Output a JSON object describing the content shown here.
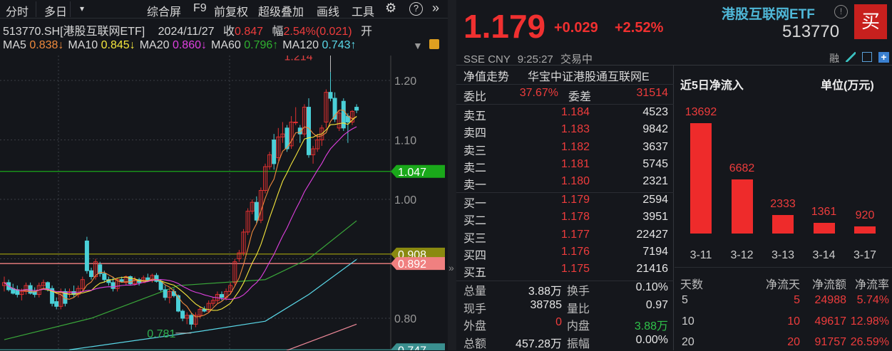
{
  "toolbar": {
    "items": [
      "分时",
      "多日",
      "综合屏",
      "F9",
      "前复权",
      "超级叠加",
      "画线",
      "工具"
    ],
    "dropdown": "▾",
    "gear": "⚙",
    "help": "?",
    "more": "»"
  },
  "info": {
    "code": "513770.SH[港股互联网ETF]",
    "date": "2024/11/27",
    "close_label": "收",
    "close": "0.847",
    "range_label": "幅",
    "range": "2.54%(0.021)",
    "open_label": "开"
  },
  "ma": {
    "items": [
      {
        "label": "MA5",
        "value": "0.838↓",
        "color": "#f08a3c"
      },
      {
        "label": "MA10",
        "value": "0.845↓",
        "color": "#f5e63c"
      },
      {
        "label": "MA20",
        "value": "0.860↓",
        "color": "#e040e0"
      },
      {
        "label": "MA60",
        "value": "0.796↑",
        "color": "#2fb02f"
      },
      {
        "label": "MA120",
        "value": "0.743↑",
        "color": "#5ad8e8"
      }
    ]
  },
  "chart_data": {
    "type": "candlestick",
    "y_ticks": [
      "1.20",
      "1.10",
      "1.00",
      "0.80"
    ],
    "ylim": [
      0.735,
      1.245
    ],
    "high_label": "1.214",
    "low_label": "0.781",
    "levels": [
      {
        "value": "1.047",
        "color": "#1aa81a"
      },
      {
        "value": "0.908",
        "color": "#8a8a10"
      },
      {
        "value": "0.892",
        "color": "#f08080"
      },
      {
        "value": "0.747",
        "color": "#3a8f8f"
      }
    ],
    "candles": [
      [
        0.855,
        0.87,
        0.845,
        0.86
      ],
      [
        0.86,
        0.865,
        0.845,
        0.848
      ],
      [
        0.85,
        0.858,
        0.84,
        0.842
      ],
      [
        0.848,
        0.855,
        0.835,
        0.84
      ],
      [
        0.84,
        0.85,
        0.83,
        0.845
      ],
      [
        0.845,
        0.86,
        0.84,
        0.855
      ],
      [
        0.855,
        0.86,
        0.84,
        0.842
      ],
      [
        0.845,
        0.852,
        0.835,
        0.84
      ],
      [
        0.84,
        0.86,
        0.835,
        0.855
      ],
      [
        0.855,
        0.865,
        0.85,
        0.86
      ],
      [
        0.86,
        0.862,
        0.845,
        0.85
      ],
      [
        0.85,
        0.855,
        0.82,
        0.825
      ],
      [
        0.828,
        0.835,
        0.815,
        0.82
      ],
      [
        0.82,
        0.85,
        0.815,
        0.845
      ],
      [
        0.845,
        0.85,
        0.82,
        0.825
      ],
      [
        0.84,
        0.85,
        0.835,
        0.845
      ],
      [
        0.845,
        0.855,
        0.835,
        0.84
      ],
      [
        0.84,
        0.855,
        0.835,
        0.85
      ],
      [
        0.85,
        0.87,
        0.845,
        0.865
      ],
      [
        0.93,
        0.937,
        0.875,
        0.88
      ],
      [
        0.88,
        0.885,
        0.865,
        0.87
      ],
      [
        0.87,
        0.9,
        0.865,
        0.895
      ],
      [
        0.89,
        0.895,
        0.87,
        0.875
      ],
      [
        0.875,
        0.88,
        0.86,
        0.865
      ],
      [
        0.865,
        0.87,
        0.855,
        0.86
      ],
      [
        0.86,
        0.87,
        0.845,
        0.85
      ],
      [
        0.85,
        0.868,
        0.845,
        0.865
      ],
      [
        0.865,
        0.87,
        0.86,
        0.862
      ],
      [
        0.86,
        0.872,
        0.855,
        0.87
      ],
      [
        0.87,
        0.872,
        0.855,
        0.858
      ],
      [
        0.858,
        0.87,
        0.855,
        0.865
      ],
      [
        0.865,
        0.868,
        0.855,
        0.86
      ],
      [
        0.86,
        0.872,
        0.86,
        0.868
      ],
      [
        0.868,
        0.875,
        0.862,
        0.864
      ],
      [
        0.864,
        0.875,
        0.86,
        0.872
      ],
      [
        0.872,
        0.876,
        0.86,
        0.862
      ],
      [
        0.862,
        0.865,
        0.845,
        0.848
      ],
      [
        0.848,
        0.855,
        0.83,
        0.835
      ],
      [
        0.835,
        0.85,
        0.825,
        0.845
      ],
      [
        0.845,
        0.85,
        0.835,
        0.838
      ],
      [
        0.838,
        0.84,
        0.81,
        0.812
      ],
      [
        0.812,
        0.815,
        0.795,
        0.8
      ],
      [
        0.8,
        0.81,
        0.79,
        0.805
      ],
      [
        0.805,
        0.808,
        0.781,
        0.79
      ],
      [
        0.79,
        0.81,
        0.785,
        0.805
      ],
      [
        0.805,
        0.82,
        0.8,
        0.815
      ],
      [
        0.815,
        0.82,
        0.81,
        0.812
      ],
      [
        0.812,
        0.83,
        0.81,
        0.825
      ],
      [
        0.825,
        0.835,
        0.82,
        0.83
      ],
      [
        0.83,
        0.845,
        0.825,
        0.84
      ],
      [
        0.84,
        0.845,
        0.83,
        0.835
      ],
      [
        0.835,
        0.85,
        0.83,
        0.845
      ],
      [
        0.845,
        0.86,
        0.84,
        0.855
      ],
      [
        0.86,
        0.9,
        0.855,
        0.895
      ],
      [
        0.9,
        0.915,
        0.895,
        0.91
      ],
      [
        0.91,
        0.95,
        0.905,
        0.945
      ],
      [
        0.945,
        0.985,
        0.94,
        0.98
      ],
      [
        0.98,
        1.0,
        0.975,
        0.995
      ],
      [
        0.995,
        1.005,
        0.96,
        0.965
      ],
      [
        0.965,
        1.02,
        0.96,
        1.015
      ],
      [
        1.015,
        1.06,
        1.01,
        1.055
      ],
      [
        1.055,
        1.08,
        1.05,
        1.075
      ],
      [
        1.1,
        1.11,
        1.05,
        1.06
      ],
      [
        1.07,
        1.12,
        1.065,
        1.105
      ],
      [
        1.105,
        1.13,
        1.095,
        1.11
      ],
      [
        1.12,
        1.125,
        1.08,
        1.085
      ],
      [
        1.09,
        1.14,
        1.085,
        1.13
      ],
      [
        1.13,
        1.155,
        1.125,
        1.13
      ],
      [
        1.12,
        1.125,
        1.095,
        1.11
      ],
      [
        1.11,
        1.16,
        1.105,
        1.155
      ],
      [
        1.155,
        1.17,
        1.07,
        1.075
      ],
      [
        1.075,
        1.09,
        1.06,
        1.085
      ],
      [
        1.085,
        1.11,
        1.08,
        1.1
      ],
      [
        1.1,
        1.125,
        1.09,
        1.12
      ],
      [
        1.13,
        1.185,
        1.12,
        1.18
      ],
      [
        1.18,
        1.214,
        1.165,
        1.17
      ],
      [
        1.17,
        1.18,
        1.13,
        1.135
      ],
      [
        1.12,
        1.15,
        1.115,
        1.145
      ],
      [
        1.165,
        1.17,
        1.115,
        1.12
      ],
      [
        1.14,
        1.145,
        1.095,
        1.13
      ],
      [
        1.13,
        1.15,
        1.125,
        1.148
      ],
      [
        1.155,
        1.16,
        1.145,
        1.15
      ]
    ],
    "long_ma": [
      {
        "name": "MA60",
        "color": "#3aa83a",
        "points": [
          [
            0,
            0.764
          ],
          [
            20,
            0.8
          ],
          [
            40,
            0.855
          ],
          [
            60,
            0.865
          ],
          [
            70,
            0.9
          ],
          [
            81,
            0.964
          ]
        ]
      },
      {
        "name": "MA120",
        "color": "#5ad8e8",
        "points": [
          [
            15,
            0.747
          ],
          [
            45,
            0.778
          ],
          [
            60,
            0.795
          ],
          [
            70,
            0.84
          ],
          [
            81,
            0.899
          ]
        ]
      },
      {
        "name": "",
        "color": "#f08a9a",
        "points": [
          [
            61,
            0.735
          ],
          [
            81,
            0.79
          ]
        ]
      }
    ]
  },
  "quote": {
    "price": "1.179",
    "change": "+0.029",
    "pct": "+2.52%",
    "name": "港股互联网ETF",
    "code": "513770",
    "buy_button": "买",
    "exchange": "SSE",
    "currency": "CNY",
    "time": "9:25:27",
    "status": "交易中",
    "icons": [
      "融",
      "pencil-icon",
      "bell-icon",
      "plus-icon"
    ]
  },
  "orderbook": {
    "nav_label": "净值走势",
    "fund_name": "华宝中证港股通互联网E",
    "weibi_label": "委比",
    "weibi": "37.67%",
    "weicha_label": "委差",
    "weicha": "31514",
    "asks": [
      {
        "label": "卖五",
        "price": "1.184",
        "vol": "4523"
      },
      {
        "label": "卖四",
        "price": "1.183",
        "vol": "9842"
      },
      {
        "label": "卖三",
        "price": "1.182",
        "vol": "3637"
      },
      {
        "label": "卖二",
        "price": "1.181",
        "vol": "5745"
      },
      {
        "label": "卖一",
        "price": "1.180",
        "vol": "2321"
      }
    ],
    "bids": [
      {
        "label": "买一",
        "price": "1.179",
        "vol": "2594"
      },
      {
        "label": "买二",
        "price": "1.178",
        "vol": "3951"
      },
      {
        "label": "买三",
        "price": "1.177",
        "vol": "22427"
      },
      {
        "label": "买四",
        "price": "1.176",
        "vol": "7194"
      },
      {
        "label": "买五",
        "price": "1.175",
        "vol": "21416"
      }
    ],
    "stats": [
      {
        "l1": "总量",
        "v1": "3.88万",
        "l2": "换手",
        "v2": "0.10%",
        "c1": "#e6e6e6",
        "c2": "#e6e6e6"
      },
      {
        "l1": "现手",
        "v1": "38785",
        "l2": "量比",
        "v2": "0.97",
        "c1": "#e6e6e6",
        "c2": "#e6e6e6"
      },
      {
        "l1": "外盘",
        "v1": "0",
        "l2": "内盘",
        "v2": "3.88万",
        "c1": "#ee3c3c",
        "c2": "#2fc24a"
      },
      {
        "l1": "总额",
        "v1": "457.28万",
        "l2": "振幅",
        "v2": "0.00%",
        "c1": "#e6e6e6",
        "c2": "#e6e6e6"
      }
    ]
  },
  "flow": {
    "title": "近5日净流入",
    "unit": "单位(万元)",
    "bars": [
      {
        "date": "3-11",
        "value": 13692
      },
      {
        "date": "3-12",
        "value": 6682
      },
      {
        "date": "3-13",
        "value": 2333
      },
      {
        "date": "3-14",
        "value": 1361
      },
      {
        "date": "3-17",
        "value": 920
      }
    ],
    "table_headers": [
      "天数",
      "净流天",
      "净流额",
      "净流率"
    ],
    "rows": [
      [
        "5",
        "5",
        "24988",
        "5.74%"
      ],
      [
        "10",
        "10",
        "49617",
        "12.98%"
      ],
      [
        "20",
        "20",
        "91757",
        "26.59%"
      ]
    ]
  }
}
